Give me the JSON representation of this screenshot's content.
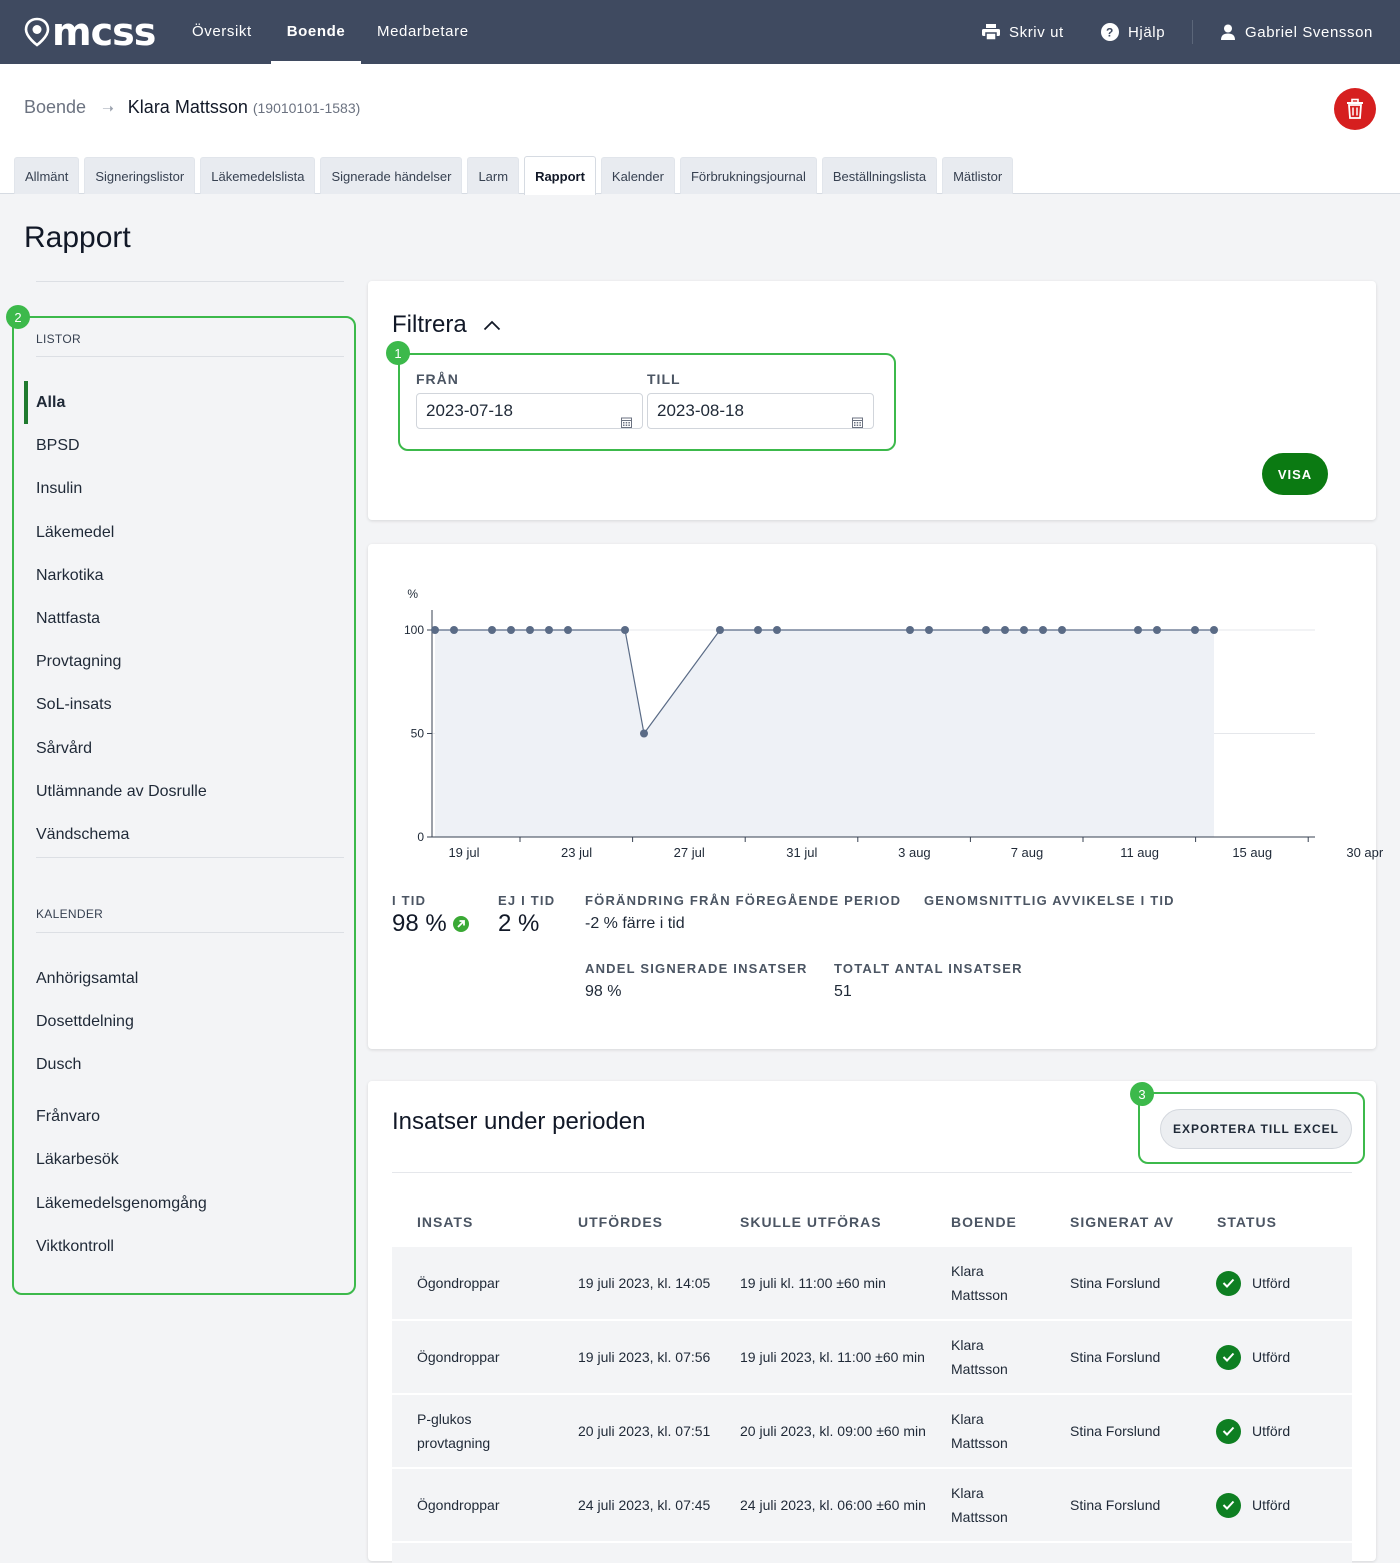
{
  "nav": {
    "logo": "mcss",
    "links": [
      "Översikt",
      "Boende",
      "Medarbetare"
    ],
    "active": "Boende",
    "print": "Skriv ut",
    "help": "Hjälp",
    "user": "Gabriel Svensson"
  },
  "breadcrumb": {
    "root": "Boende",
    "name": "Klara Mattsson",
    "id": "(19010101-1583)"
  },
  "tabs": [
    "Allmänt",
    "Signeringslistor",
    "Läkemedelslista",
    "Signerade händelser",
    "Larm",
    "Rapport",
    "Kalender",
    "Förbrukningsjournal",
    "Beställningslista",
    "Mätlistor"
  ],
  "active_tab": "Rapport",
  "page_title": "Rapport",
  "sidebar": {
    "badge": "2",
    "listor_heading": "LISTOR",
    "listor": [
      "Alla",
      "BPSD",
      "Insulin",
      "Läkemedel",
      "Narkotika",
      "Nattfasta",
      "Provtagning",
      "SoL-insats",
      "Sårvård",
      "Utlämnande av Dosrulle",
      "Vändschema"
    ],
    "active": "Alla",
    "kalender_heading": "KALENDER",
    "kalender": [
      "Anhörigsamtal",
      "Dosettdelning",
      "Dusch",
      "Frånvaro",
      "Läkarbesök",
      "Läkemedelsgenomgång",
      "Viktkontroll"
    ]
  },
  "filter": {
    "title": "Filtrera",
    "badge": "1",
    "from_label": "FRÅN",
    "from_value": "2023-07-18",
    "to_label": "TILL",
    "to_value": "2023-08-18",
    "show_button": "VISA"
  },
  "chart_data": {
    "type": "area",
    "title": "",
    "ylabel": "%",
    "xlabel": "",
    "ylim": [
      0,
      100
    ],
    "yticks": [
      0,
      50,
      100
    ],
    "xtick_labels": [
      "19 jul",
      "23 jul",
      "27 jul",
      "31 jul",
      "3 aug",
      "7 aug",
      "11 aug",
      "15 aug",
      "30 apr"
    ],
    "series": [
      {
        "name": "I tid",
        "x": [
          18,
          19,
          21,
          22,
          23,
          24,
          25,
          28,
          29,
          33,
          35,
          36,
          43,
          44,
          47,
          48,
          49,
          50,
          51,
          55,
          56,
          58,
          59
        ],
        "values": [
          100,
          100,
          100,
          100,
          100,
          100,
          100,
          100,
          50,
          100,
          100,
          100,
          100,
          100,
          100,
          100,
          100,
          100,
          100,
          100,
          100,
          100,
          100
        ]
      }
    ],
    "colors": {
      "line": "#5a6b86",
      "fill": "#eef1f6",
      "grid": "#e5e7eb"
    }
  },
  "stats": {
    "in_time_label": "I TID",
    "in_time_value": "98 %",
    "not_in_time_label": "EJ I TID",
    "not_in_time_value": "2 %",
    "change_label": "FÖRÄNDRING FRÅN FÖREGÅENDE PERIOD",
    "change_value": "-2 % färre i tid",
    "avg_dev_label": "GENOMSNITTLIG AVVIKELSE I TID",
    "signed_share_label": "ANDEL SIGNERADE INSATSER",
    "signed_share_value": "98 %",
    "total_label": "TOTALT ANTAL INSATSER",
    "total_value": "51"
  },
  "table": {
    "title": "Insatser under perioden",
    "badge": "3",
    "export_button": "EXPORTERA TILL EXCEL",
    "headers": [
      "INSATS",
      "UTFÖRDES",
      "SKULLE UTFÖRAS",
      "BOENDE",
      "SIGNERAT AV",
      "STATUS"
    ],
    "rows": [
      [
        "Ögondroppar",
        "19 juli 2023, kl. 14:05",
        "19 juli kl. 11:00 ±60 min",
        "Klara Mattsson",
        "Stina Forslund",
        "Utförd"
      ],
      [
        "Ögondroppar",
        "19 juli 2023, kl. 07:56",
        "19 juli 2023, kl. 11:00 ±60 min",
        "Klara Mattsson",
        "Stina Forslund",
        "Utförd"
      ],
      [
        "P-glukos provtagning",
        "20 juli 2023, kl. 07:51",
        "20 juli 2023, kl. 09:00 ±60 min",
        "Klara Mattsson",
        "Stina Forslund",
        "Utförd"
      ],
      [
        "Ögondroppar",
        "24 juli 2023, kl. 07:45",
        "24 juli 2023, kl. 06:00 ±60 min",
        "Klara Mattsson",
        "Stina Forslund",
        "Utförd"
      ]
    ]
  }
}
